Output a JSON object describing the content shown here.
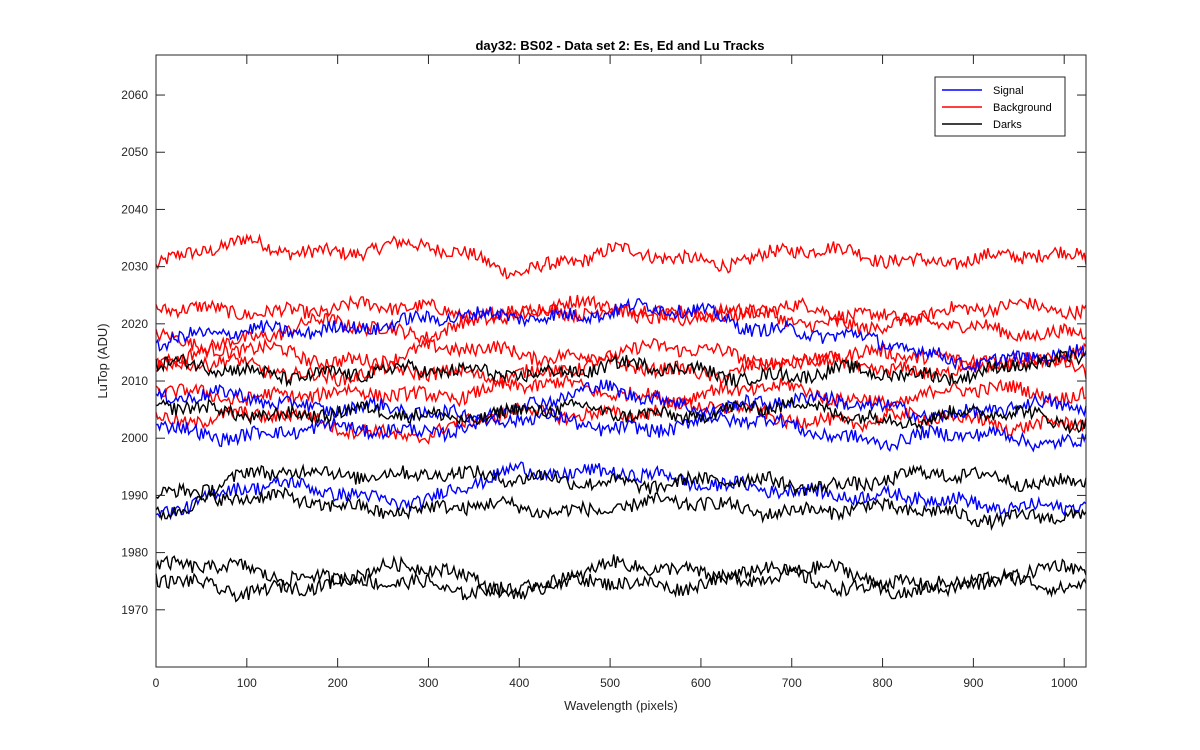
{
  "chart_data": {
    "type": "line",
    "title": "day32: BS02 - Data set 2: Es, Ed and Lu Tracks",
    "xlabel": "Wavelength (pixels)",
    "ylabel": "LuTop (ADU)",
    "xlim": [
      0,
      1024
    ],
    "ylim": [
      1960,
      2067
    ],
    "xticks": [
      0,
      100,
      200,
      300,
      400,
      500,
      600,
      700,
      800,
      900,
      1000
    ],
    "yticks": [
      1970,
      1980,
      1990,
      2000,
      2010,
      2020,
      2030,
      2040,
      2050,
      2060
    ],
    "grid": false,
    "legend_position": "top-right",
    "legend": [
      {
        "label": "Signal",
        "color": "#0000ff"
      },
      {
        "label": "Background",
        "color": "#ff0000"
      },
      {
        "label": "Darks",
        "color": "#000000"
      }
    ],
    "series": [
      {
        "group": "Background",
        "color": "#ff0000",
        "x": [
          0,
          100,
          200,
          300,
          400,
          500,
          600,
          700,
          800,
          900,
          1024
        ],
        "y": [
          2030,
          2034,
          2033,
          2033,
          2030,
          2032,
          2031,
          2033,
          2031,
          2032,
          2031
        ]
      },
      {
        "group": "Background",
        "color": "#ff0000",
        "x": [
          0,
          100,
          200,
          300,
          400,
          500,
          600,
          700,
          800,
          900,
          1024
        ],
        "y": [
          2022,
          2023,
          2022,
          2023,
          2022,
          2023,
          2022,
          2022,
          2022,
          2022,
          2023
        ]
      },
      {
        "group": "Background",
        "color": "#ff0000",
        "x": [
          0,
          100,
          200,
          300,
          400,
          500,
          600,
          700,
          800,
          900,
          1024
        ],
        "y": [
          2018,
          2017,
          2020,
          2019,
          2021,
          2023,
          2021,
          2021,
          2020,
          2019,
          2019
        ]
      },
      {
        "group": "Background",
        "color": "#ff0000",
        "x": [
          0,
          100,
          200,
          300,
          400,
          500,
          600,
          700,
          800,
          900,
          1024
        ],
        "y": [
          2014,
          2015,
          2014,
          2015,
          2015,
          2015,
          2015,
          2014,
          2014,
          2014,
          2014
        ]
      },
      {
        "group": "Background",
        "color": "#ff0000",
        "x": [
          0,
          100,
          200,
          300,
          400,
          500,
          600,
          700,
          800,
          900,
          1024
        ],
        "y": [
          2012,
          2013,
          2011,
          2011,
          2012,
          2012,
          2012,
          2013,
          2012,
          2013,
          2012
        ]
      },
      {
        "group": "Background",
        "color": "#ff0000",
        "x": [
          0,
          100,
          200,
          300,
          400,
          500,
          600,
          700,
          800,
          900,
          1024
        ],
        "y": [
          2008,
          2008,
          2007,
          2008,
          2009,
          2008,
          2008,
          2008,
          2007,
          2008,
          2008
        ]
      },
      {
        "group": "Background",
        "color": "#ff0000",
        "x": [
          0,
          100,
          200,
          300,
          400,
          500,
          600,
          700,
          800,
          900,
          1024
        ],
        "y": [
          2004,
          2004,
          2002,
          2001,
          2004,
          2005,
          2005,
          2004,
          2003,
          2003,
          2003
        ]
      },
      {
        "group": "Signal",
        "color": "#0000ff",
        "x": [
          0,
          100,
          200,
          300,
          400,
          500,
          600,
          700,
          800,
          900,
          1024
        ],
        "y": [
          2017,
          2018,
          2020,
          2020,
          2022,
          2022,
          2022,
          2019,
          2016,
          2014,
          2014
        ]
      },
      {
        "group": "Signal",
        "color": "#0000ff",
        "x": [
          0,
          100,
          200,
          300,
          400,
          500,
          600,
          700,
          800,
          900,
          1024
        ],
        "y": [
          2006,
          2008,
          2005,
          2004,
          2006,
          2008,
          2006,
          2006,
          2006,
          2004,
          2006
        ]
      },
      {
        "group": "Signal",
        "color": "#0000ff",
        "x": [
          0,
          100,
          200,
          300,
          400,
          500,
          600,
          700,
          800,
          900,
          1024
        ],
        "y": [
          2002,
          2001,
          2001,
          2002,
          2003,
          2002,
          2003,
          2002,
          2000,
          2000,
          2000
        ]
      },
      {
        "group": "Signal",
        "color": "#0000ff",
        "x": [
          0,
          100,
          200,
          300,
          400,
          500,
          600,
          700,
          800,
          900,
          1024
        ],
        "y": [
          1988,
          1991,
          1991,
          1989,
          1994,
          1995,
          1991,
          1992,
          1989,
          1989,
          1988
        ]
      },
      {
        "group": "Darks",
        "color": "#000000",
        "x": [
          0,
          100,
          200,
          300,
          400,
          500,
          600,
          700,
          800,
          900,
          1024
        ],
        "y": [
          2013,
          2011,
          2012,
          2011,
          2012,
          2012,
          2012,
          2011,
          2011,
          2012,
          2013
        ]
      },
      {
        "group": "Darks",
        "color": "#000000",
        "x": [
          0,
          100,
          200,
          300,
          400,
          500,
          600,
          700,
          800,
          900,
          1024
        ],
        "y": [
          2005,
          2005,
          2004,
          2004,
          2005,
          2004,
          2005,
          2005,
          2004,
          2004,
          2003
        ]
      },
      {
        "group": "Darks",
        "color": "#000000",
        "x": [
          0,
          100,
          200,
          300,
          400,
          500,
          600,
          700,
          800,
          900,
          1024
        ],
        "y": [
          1990,
          1994,
          1993,
          1995,
          1992,
          1993,
          1992,
          1992,
          1993,
          1993,
          1993
        ]
      },
      {
        "group": "Darks",
        "color": "#000000",
        "x": [
          0,
          100,
          200,
          300,
          400,
          500,
          600,
          700,
          800,
          900,
          1024
        ],
        "y": [
          1988,
          1989,
          1989,
          1987,
          1988,
          1988,
          1988,
          1988,
          1987,
          1987,
          1986
        ]
      },
      {
        "group": "Darks",
        "color": "#000000",
        "x": [
          0,
          100,
          200,
          300,
          400,
          500,
          600,
          700,
          800,
          900,
          1024
        ],
        "y": [
          1977,
          1977,
          1976,
          1977,
          1974,
          1977,
          1977,
          1977,
          1975,
          1975,
          1977
        ]
      },
      {
        "group": "Darks",
        "color": "#000000",
        "x": [
          0,
          100,
          200,
          300,
          400,
          500,
          600,
          700,
          800,
          900,
          1024
        ],
        "y": [
          1975,
          1974,
          1974,
          1975,
          1973,
          1975,
          1975,
          1975,
          1974,
          1974,
          1975
        ]
      }
    ]
  }
}
